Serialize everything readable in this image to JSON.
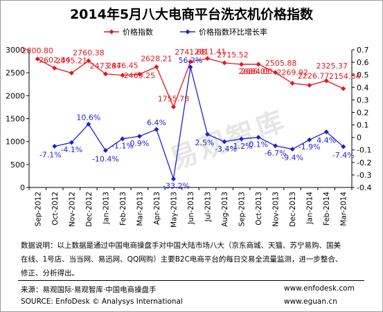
{
  "chart_data": {
    "type": "line",
    "title": "2014年5月八大电商平台洗衣机价格指数",
    "watermark": "易观智库",
    "categories": [
      "Sep-2012",
      "Oct-2012",
      "Nov-2012",
      "Dec-2012",
      "Jan-2013",
      "Feb-2013",
      "Mar-2013",
      "Apr-2013",
      "May-2013",
      "Jun-2013",
      "Jul-2013",
      "Aug-2013",
      "Sep-2013",
      "Oct-2013",
      "Nov-2013",
      "Dec-2013",
      "Jan-2014",
      "Feb-2014",
      "Mar-2014"
    ],
    "series": [
      {
        "name": "价格指数",
        "axis": "left",
        "color": "#e8141c",
        "values": [
          2800.8,
          2602.84,
          2495.21,
          2760.38,
          2473.87,
          2446.45,
          2469.25,
          2628.21,
          1755.78,
          2741.68,
          2811.41,
          2715.52,
          2684.0,
          2686.05,
          2505.88,
          2269.92,
          2226.77,
          2325.37,
          2154.34
        ],
        "labels": [
          "2800.80",
          "2602.84",
          "2495.21",
          "2760.38",
          "2473.87",
          "2446.45",
          "2469.25",
          "2628.21",
          "1755.78",
          "2741.68",
          "2811.41",
          "2715.52",
          "2684.00",
          "2686.05",
          "2505.88",
          "2269.92",
          "2226.77",
          "2325.37",
          "2154.34"
        ]
      },
      {
        "name": "价格指数环比增长率",
        "axis": "right",
        "color": "#1f1fd6",
        "values": [
          null,
          -0.071,
          -0.041,
          0.106,
          -0.104,
          -0.011,
          0.009,
          0.064,
          -0.332,
          0.562,
          0.025,
          -0.034,
          -0.012,
          0.001,
          -0.067,
          -0.094,
          -0.019,
          0.044,
          -0.074
        ],
        "labels": [
          "",
          "-7.1%",
          "-4.1%",
          "10.6%",
          "-10.4%",
          "-1.1%",
          "0.9%",
          "6.4%",
          "-33.2%",
          "56.2%",
          "2.5%",
          "-3.4%",
          "-1.2%",
          "0.1%",
          "-6.7%",
          "-9.4%",
          "-1.9%",
          "4.4%",
          "-7.4%"
        ]
      }
    ],
    "y_left": {
      "min": 0,
      "max": 3000,
      "ticks": [
        "0",
        "500",
        "1000",
        "1500",
        "2000",
        "2500",
        "3000"
      ]
    },
    "y_right": {
      "min": -0.4,
      "max": 0.7,
      "ticks": [
        "-0.4",
        "-0.3",
        "-0.2",
        "-0.1",
        "0",
        "0.1",
        "0.2",
        "0.3",
        "0.4",
        "0.5",
        "0.6",
        "0.7"
      ]
    },
    "legend_position": "top"
  },
  "note": {
    "line1": "数据说明：以上数据是通过中国电商操盘手对中国大陆市场八大（京东商城、天猫、苏宁易购、国美",
    "line2": "在线、1号店、当当网、易迅网、QQ网购）主要B2C电商平台的每日交易全流量监测，进一步整合、",
    "line3": "修正、分析得出。"
  },
  "footer": {
    "source_cn": "来源：易观国际·易观智库·中国电商操盘手",
    "source_en": "SOURCE: EnfoDesk © Analysys International",
    "url1": "www.enfodesk.com",
    "url2": "www.eguan.cn"
  }
}
